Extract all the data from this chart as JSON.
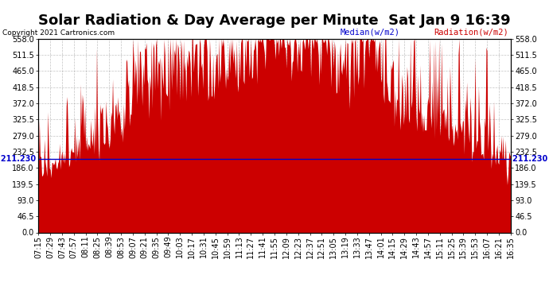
{
  "title": "Solar Radiation & Day Average per Minute  Sat Jan 9 16:39",
  "copyright_text": "Copyright 2021 Cartronics.com",
  "legend_median": "Median(w/m2)",
  "legend_radiation": "Radiation(w/m2)",
  "median_value": 211.23,
  "y_ticks": [
    0.0,
    46.5,
    93.0,
    139.5,
    186.0,
    232.5,
    279.0,
    325.5,
    372.0,
    418.5,
    465.0,
    511.5,
    558.0
  ],
  "y_tick_labels": [
    "0.0",
    "46.5",
    "93.0",
    "139.5",
    "186.0",
    "232.5",
    "279.0",
    "325.5",
    "372.0",
    "418.5",
    "465.0",
    "511.5",
    "558.0"
  ],
  "ymin": 0.0,
  "ymax": 558.0,
  "bar_color": "#cc0000",
  "median_line_color": "#0000cc",
  "background_color": "#ffffff",
  "grid_color": "#aaaaaa",
  "title_fontsize": 13,
  "tick_label_fontsize": 7,
  "x_tick_labels": [
    "07:15",
    "07:29",
    "07:43",
    "07:57",
    "08:11",
    "08:25",
    "08:39",
    "08:53",
    "09:07",
    "09:21",
    "09:35",
    "09:49",
    "10:03",
    "10:17",
    "10:31",
    "10:45",
    "10:59",
    "11:13",
    "11:27",
    "11:41",
    "11:55",
    "12:09",
    "12:23",
    "12:37",
    "12:51",
    "13:05",
    "13:19",
    "13:33",
    "13:47",
    "14:01",
    "14:15",
    "14:29",
    "14:43",
    "14:57",
    "15:11",
    "15:25",
    "15:39",
    "15:53",
    "16:07",
    "16:21",
    "16:35"
  ]
}
